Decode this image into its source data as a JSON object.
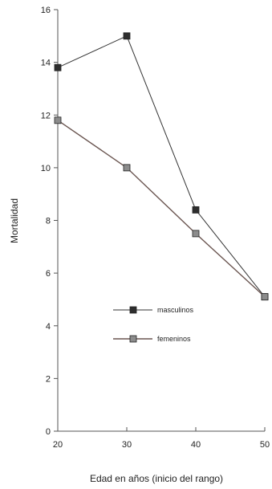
{
  "chart_data": {
    "type": "line",
    "title": "",
    "xlabel": "Edad en años (inicio del rango)",
    "ylabel": "Mortalidad",
    "x": [
      20,
      30,
      40,
      50
    ],
    "xticks": [
      "20",
      "30",
      "40",
      "50"
    ],
    "yticks": [
      "0",
      "2",
      "4",
      "6",
      "8",
      "10",
      "12",
      "14",
      "16"
    ],
    "xlim": [
      20,
      50
    ],
    "ylim": [
      0,
      16
    ],
    "grid": false,
    "legend_position": "center",
    "series": [
      {
        "name": "masculinos",
        "values": [
          13.8,
          15.0,
          8.4,
          5.1
        ],
        "color": "#333333",
        "marker_color": "#2e2e2e"
      },
      {
        "name": "femeninos",
        "values": [
          11.8,
          10.0,
          7.5,
          5.1
        ],
        "color": "#6a5550",
        "marker_color": "#8c8c8c"
      }
    ]
  }
}
